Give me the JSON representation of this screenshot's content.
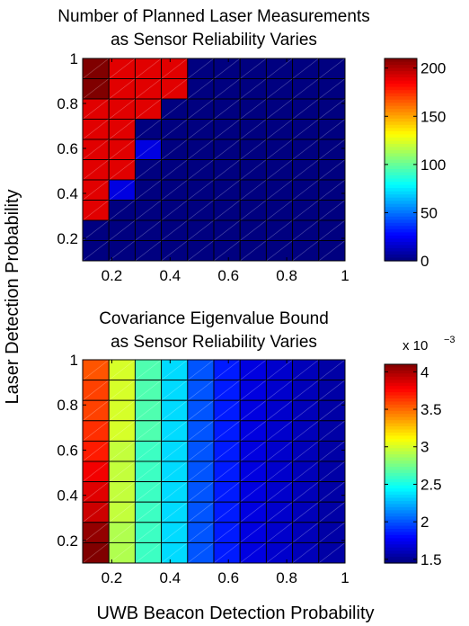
{
  "figure": {
    "shared_ylabel": "Laser Detection Probability",
    "shared_xlabel": "UWB Beacon Detection Probability"
  },
  "chart_data": [
    {
      "type": "heatmap",
      "title": "Number of Planned Laser Measurements\nas Sensor Reliability Varies",
      "xlabel": "UWB Beacon Detection Probability",
      "ylabel": "Laser Detection Probability",
      "x": [
        0.1,
        0.2,
        0.3,
        0.4,
        0.5,
        0.6,
        0.7,
        0.8,
        0.9,
        1.0
      ],
      "y": [
        1.0,
        0.9,
        0.8,
        0.7,
        0.6,
        0.5,
        0.4,
        0.3,
        0.2,
        0.1
      ],
      "values": [
        [
          210,
          190,
          190,
          190,
          0,
          0,
          0,
          0,
          0,
          0
        ],
        [
          210,
          190,
          190,
          190,
          0,
          0,
          0,
          0,
          0,
          0
        ],
        [
          190,
          190,
          190,
          0,
          0,
          0,
          0,
          0,
          0,
          0
        ],
        [
          190,
          190,
          0,
          0,
          0,
          0,
          0,
          0,
          0,
          0
        ],
        [
          190,
          190,
          20,
          0,
          0,
          0,
          0,
          0,
          0,
          0
        ],
        [
          190,
          190,
          0,
          0,
          0,
          0,
          0,
          0,
          0,
          0
        ],
        [
          190,
          20,
          0,
          0,
          0,
          0,
          0,
          0,
          0,
          0
        ],
        [
          190,
          0,
          0,
          0,
          0,
          0,
          0,
          0,
          0,
          0
        ],
        [
          0,
          0,
          0,
          0,
          0,
          0,
          0,
          0,
          0,
          0
        ],
        [
          0,
          0,
          0,
          0,
          0,
          0,
          0,
          0,
          0,
          0
        ]
      ],
      "xlim": [
        0.1,
        1
      ],
      "ylim": [
        0.1,
        1
      ],
      "xticks": [
        0.2,
        0.4,
        0.6,
        0.8,
        1
      ],
      "xtick_labels": [
        "0.2",
        "0.4",
        "0.6",
        "0.8",
        "1"
      ],
      "yticks": [
        0.2,
        0.4,
        0.6,
        0.8,
        1
      ],
      "ytick_labels": [
        "0.2",
        "0.4",
        "0.6",
        "0.8",
        "1"
      ],
      "colorbar": {
        "range": [
          0,
          210
        ],
        "ticks": [
          0,
          50,
          100,
          150,
          200
        ],
        "tick_labels": [
          "0",
          "50",
          "100",
          "150",
          "200"
        ],
        "multiplier_label": ""
      },
      "colormap": "jet"
    },
    {
      "type": "heatmap",
      "title": "Covariance Eigenvalue Bound\nas Sensor Reliability Varies",
      "xlabel": "UWB Beacon Detection Probability",
      "ylabel": "Laser Detection Probability",
      "x": [
        0.1,
        0.2,
        0.3,
        0.4,
        0.5,
        0.6,
        0.7,
        0.8,
        0.9,
        1.0
      ],
      "y": [
        1.0,
        0.9,
        0.8,
        0.7,
        0.6,
        0.5,
        0.4,
        0.3,
        0.2,
        0.1
      ],
      "values": [
        [
          3.55,
          3.0,
          2.65,
          2.35,
          2.0,
          1.85,
          1.7,
          1.65,
          1.6,
          1.55
        ],
        [
          3.6,
          3.0,
          2.65,
          2.35,
          2.0,
          1.85,
          1.7,
          1.65,
          1.6,
          1.55
        ],
        [
          3.6,
          3.0,
          2.65,
          2.35,
          2.0,
          1.85,
          1.7,
          1.65,
          1.6,
          1.55
        ],
        [
          3.65,
          3.0,
          2.65,
          2.35,
          2.0,
          1.85,
          1.7,
          1.65,
          1.6,
          1.55
        ],
        [
          3.7,
          2.95,
          2.6,
          2.35,
          2.0,
          1.85,
          1.7,
          1.65,
          1.6,
          1.55
        ],
        [
          3.8,
          2.95,
          2.6,
          2.35,
          2.0,
          1.85,
          1.7,
          1.65,
          1.6,
          1.55
        ],
        [
          3.85,
          2.95,
          2.6,
          2.35,
          2.0,
          1.85,
          1.7,
          1.65,
          1.6,
          1.55
        ],
        [
          3.9,
          2.95,
          2.6,
          2.35,
          2.0,
          1.85,
          1.7,
          1.65,
          1.6,
          1.55
        ],
        [
          4.05,
          2.9,
          2.6,
          2.35,
          2.0,
          1.85,
          1.7,
          1.65,
          1.6,
          1.55
        ],
        [
          4.1,
          2.9,
          2.6,
          2.35,
          2.0,
          1.85,
          1.7,
          1.65,
          1.6,
          1.55
        ]
      ],
      "xlim": [
        0.1,
        1
      ],
      "ylim": [
        0.1,
        1
      ],
      "xticks": [
        0.2,
        0.4,
        0.6,
        0.8,
        1
      ],
      "xtick_labels": [
        "0.2",
        "0.4",
        "0.6",
        "0.8",
        "1"
      ],
      "yticks": [
        0.2,
        0.4,
        0.6,
        0.8,
        1
      ],
      "ytick_labels": [
        "0.2",
        "0.4",
        "0.6",
        "0.8",
        "1"
      ],
      "colorbar": {
        "range": [
          1.45,
          4.1
        ],
        "ticks": [
          1.5,
          2,
          2.5,
          3,
          3.5,
          4
        ],
        "tick_labels": [
          "1.5",
          "2",
          "2.5",
          "3",
          "3.5",
          "4"
        ],
        "multiplier_label": "x 10",
        "multiplier_exponent": "−3"
      },
      "colormap": "jet"
    }
  ]
}
